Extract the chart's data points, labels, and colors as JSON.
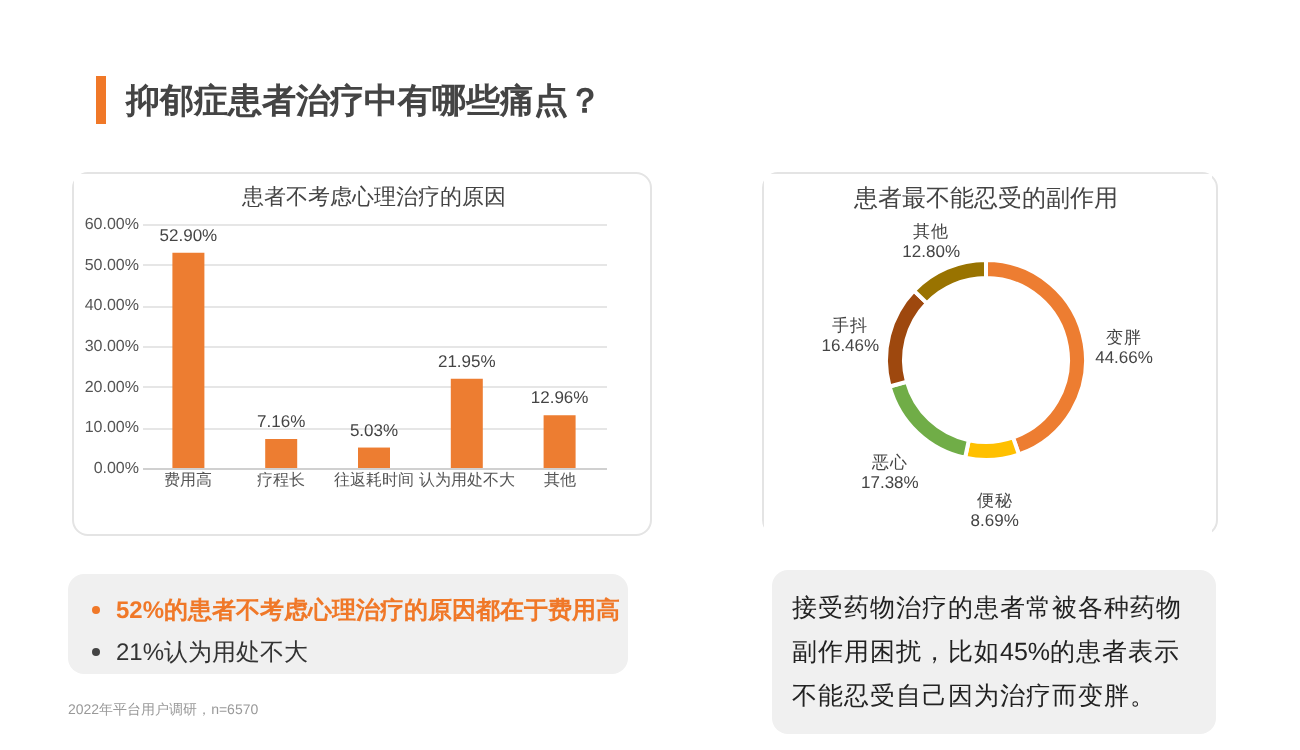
{
  "chart_data": [
    {
      "type": "other",
      "title": "抑郁症患者治疗中有哪些痛点？",
      "annotations": [
        "2022年平台用户调研，n=6570"
      ]
    },
    {
      "type": "bar",
      "title": "患者不考虑心理治疗的原因",
      "categories": [
        "费用高",
        "疗程长",
        "往返耗时间",
        "认为用处不大",
        "其他"
      ],
      "values": [
        52.9,
        7.16,
        5.03,
        21.95,
        12.96
      ],
      "color": "#ed7d31",
      "value_labels": [
        "52.90%",
        "7.16%",
        "5.03%",
        "21.95%",
        "12.96%"
      ],
      "ylim": [
        0,
        60
      ],
      "yticks": [
        {
          "value": 0,
          "label": "0.00%"
        },
        {
          "value": 10,
          "label": "10.00%"
        },
        {
          "value": 20,
          "label": "20.00%"
        },
        {
          "value": 30,
          "label": "30.00%"
        },
        {
          "value": 40,
          "label": "40.00%"
        },
        {
          "value": 50,
          "label": "50.00%"
        },
        {
          "value": 60,
          "label": "60.00%"
        }
      ],
      "grid": "y",
      "annotations": [
        "52%的患者不考虑心理治疗的原因都在于费用高",
        "21%认为用处不大"
      ]
    },
    {
      "type": "donut",
      "title": "患者最不能忍受的副作用",
      "categories": [
        "变胖",
        "便秘",
        "恶心",
        "手抖",
        "其他"
      ],
      "values": [
        44.66,
        8.69,
        17.38,
        16.46,
        12.8
      ],
      "colors": [
        "#ed7d31",
        "#ffc000",
        "#70ad47",
        "#9e480e",
        "#997300"
      ],
      "value_labels": [
        "44.66%",
        "8.69%",
        "17.38%",
        "16.46%",
        "12.80%"
      ],
      "annotations": [
        "接受药物治疗的患者常被各种药物副作用困扰，比如45%的患者表示不能忍受自己因为治疗而变胖。"
      ]
    }
  ]
}
